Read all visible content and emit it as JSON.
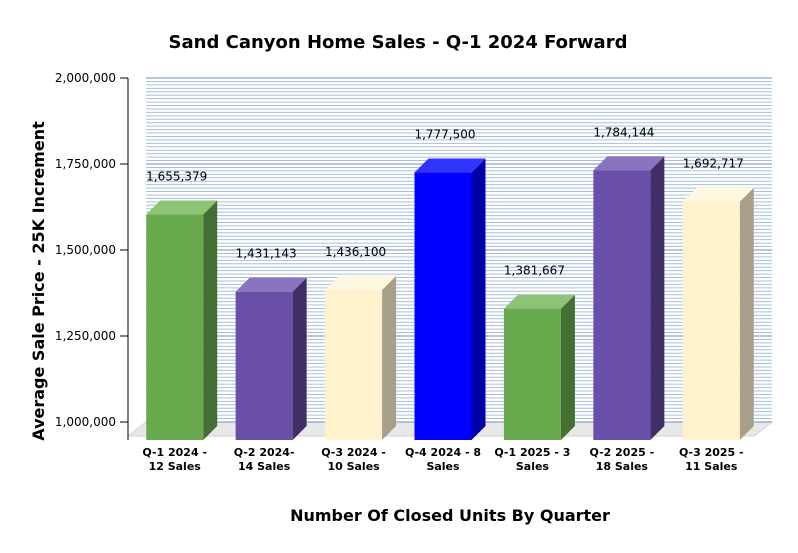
{
  "chart_data": {
    "type": "bar",
    "title": "Sand Canyon Home Sales - Q-1 2024 Forward",
    "xlabel": "Number Of Closed Units By Quarter",
    "ylabel": "Average Sale Price - 25K Increment",
    "ylim": [
      1000000,
      2000000
    ],
    "yticks": [
      "1,000,000",
      "1,250,000",
      "1,500,000",
      "1,750,000",
      "2,000,000"
    ],
    "grid": true,
    "categories": [
      [
        "Q-1 2024 -",
        "12 Sales"
      ],
      [
        "Q-2 2024-",
        "14 Sales"
      ],
      [
        "Q-3 2024 -",
        "10 Sales"
      ],
      [
        "Q-4 2024 - 8",
        "Sales"
      ],
      [
        "Q-1 2025 - 3",
        "Sales"
      ],
      [
        "Q-2 2025 -",
        "18 Sales"
      ],
      [
        "Q-3 2025 -",
        "11 Sales"
      ]
    ],
    "values": [
      1655379,
      1431143,
      1436100,
      1777500,
      1381667,
      1784144,
      1692717
    ],
    "value_labels": [
      "1,655,379",
      "1,431,143",
      "1,436,100",
      "1,777,500",
      "1,381,667",
      "1,784,144",
      "1,692,717"
    ],
    "colors": [
      "#6aaa4f",
      "#6a4fa8",
      "#fff2cc",
      "#0000ff",
      "#6aaa4f",
      "#6a4fa8",
      "#fff2cc"
    ],
    "side_colors": [
      "#456e33",
      "#3f2f66",
      "#a89f88",
      "#0000a8",
      "#456e33",
      "#3f2f66",
      "#a89f88"
    ],
    "top_colors": [
      "#8cc473",
      "#8a74c0",
      "#fff8e0",
      "#3333ff",
      "#8cc473",
      "#8a74c0",
      "#fff8e0"
    ],
    "minor_grid_color": "#a6bfe0",
    "major_grid_color": "#6f8fc2"
  }
}
